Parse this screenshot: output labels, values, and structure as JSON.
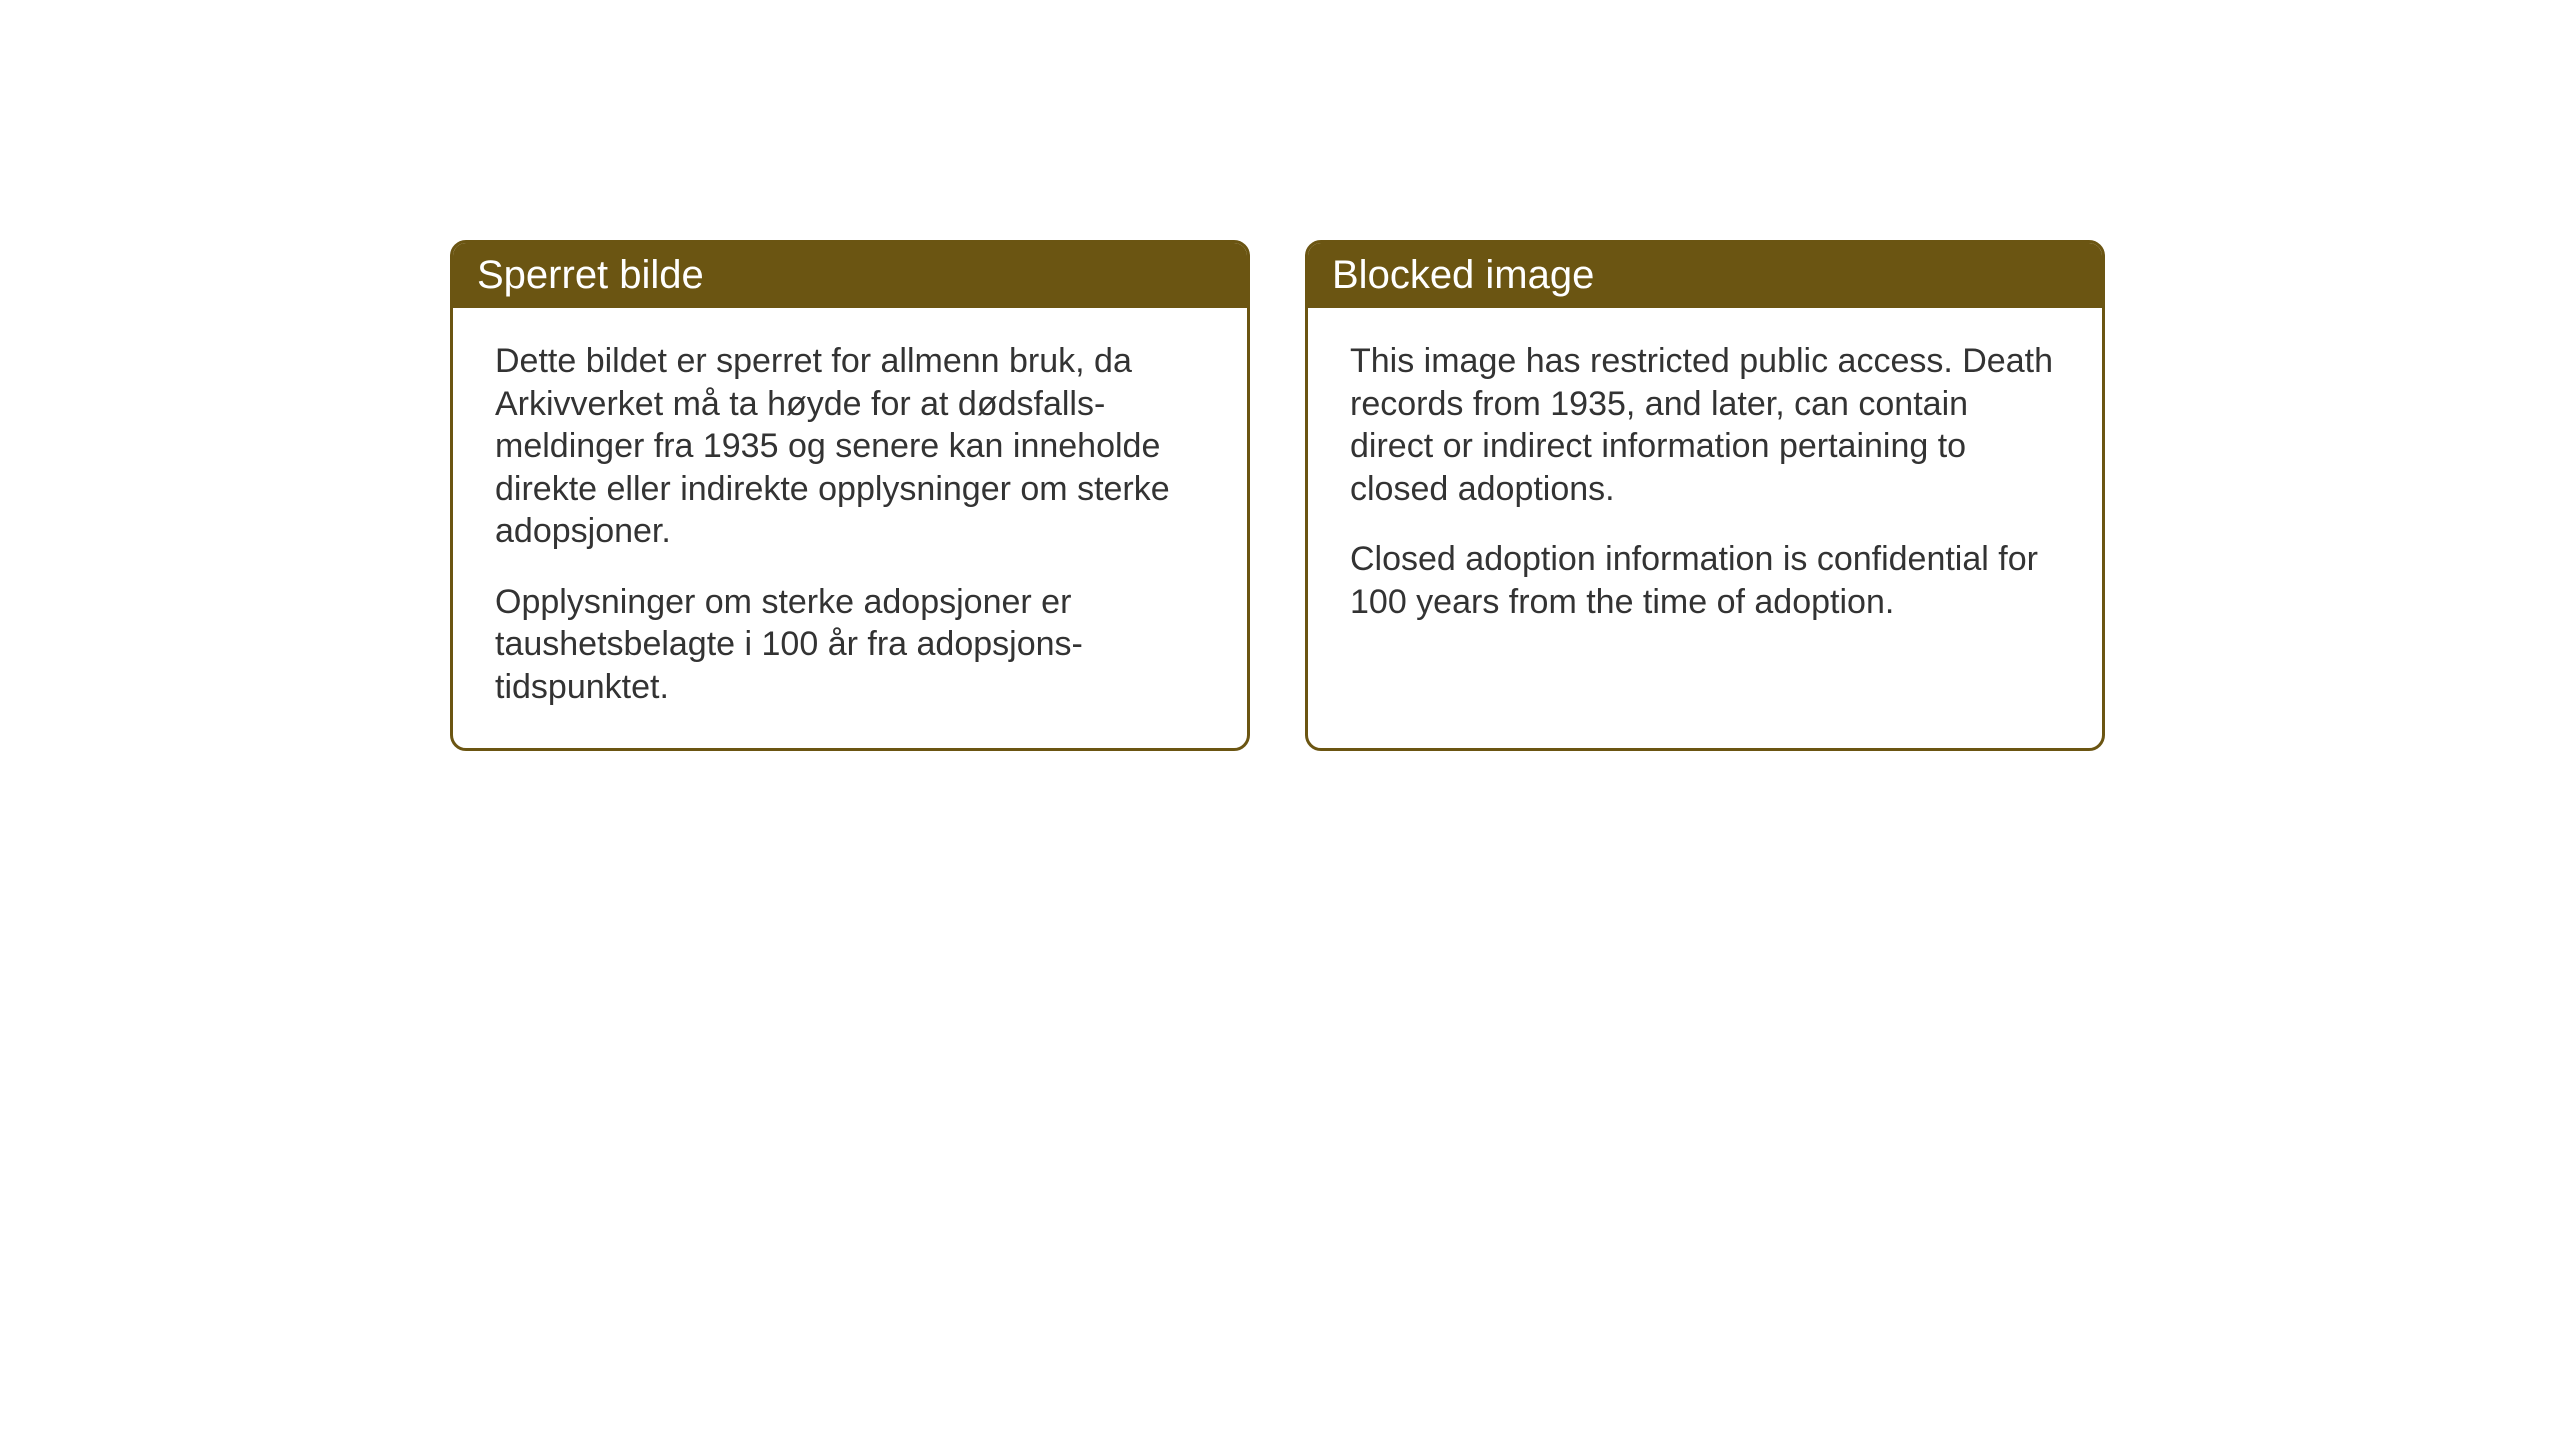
{
  "layout": {
    "background_color": "#ffffff",
    "header_background_color": "#6b5512",
    "header_text_color": "#ffffff",
    "border_color": "#6b5512",
    "body_text_color": "#333333",
    "border_radius": 16,
    "border_width": 3,
    "header_fontsize": 40,
    "body_fontsize": 34
  },
  "notices": {
    "norwegian": {
      "title": "Sperret bilde",
      "paragraph1": "Dette bildet er sperret for allmenn bruk, da Arkivverket må ta høyde for at dødsfalls-meldinger fra 1935 og senere kan inneholde direkte eller indirekte opplysninger om sterke adopsjoner.",
      "paragraph2": "Opplysninger om sterke adopsjoner er taushetsbelagte i 100 år fra adopsjons-tidspunktet."
    },
    "english": {
      "title": "Blocked image",
      "paragraph1": "This image has restricted public access. Death records from 1935, and later, can contain direct or indirect information pertaining to closed adoptions.",
      "paragraph2": "Closed adoption information is confidential for 100 years from the time of adoption."
    }
  }
}
